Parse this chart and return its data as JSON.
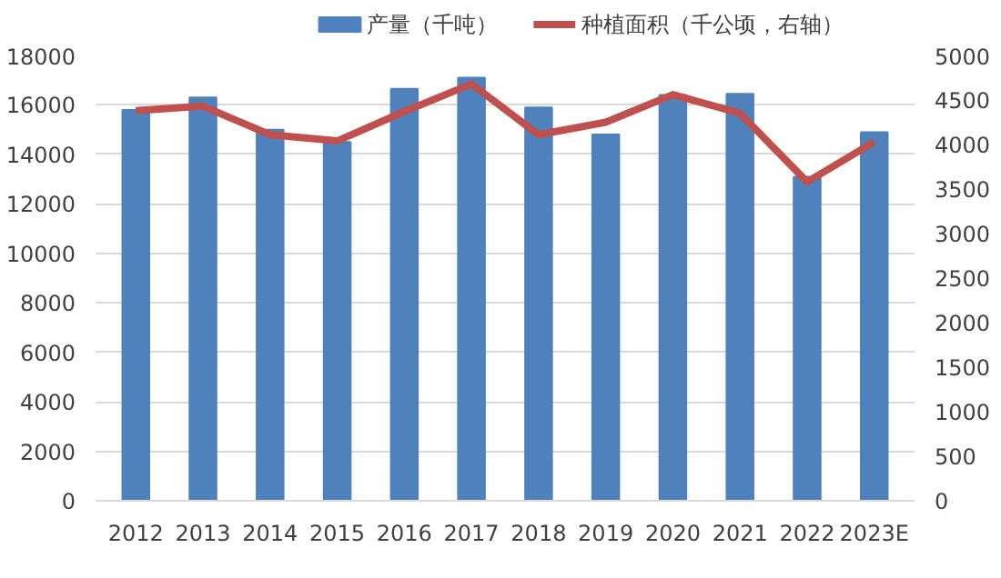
{
  "chart_data": {
    "type": "bar",
    "categories": [
      "2012",
      "2013",
      "2014",
      "2015",
      "2016",
      "2017",
      "2018",
      "2019",
      "2020",
      "2021",
      "2022",
      "2023E"
    ],
    "series": [
      {
        "name": "产量（千吨）",
        "color": "#4f81bd",
        "values": [
          15800,
          16300,
          15000,
          14500,
          16650,
          17100,
          15900,
          14800,
          16400,
          16450,
          13100,
          14900
        ]
      },
      {
        "name": "种植面积（千公顷，右轴）",
        "type": "line",
        "axis": "y2",
        "color": "#c0504d",
        "values": [
          4380,
          4430,
          4110,
          4040,
          4370,
          4680,
          4110,
          4250,
          4560,
          4350,
          3580,
          4030
        ]
      }
    ],
    "ylim": [
      0,
      18000
    ],
    "yticks": [
      0,
      2000,
      4000,
      6000,
      8000,
      10000,
      12000,
      14000,
      16000,
      18000
    ],
    "y2lim": [
      0,
      5000
    ],
    "y2ticks": [
      0,
      500,
      1000,
      1500,
      2000,
      2500,
      3000,
      3500,
      4000,
      4500,
      5000
    ],
    "grid": "y",
    "legend": "top"
  }
}
